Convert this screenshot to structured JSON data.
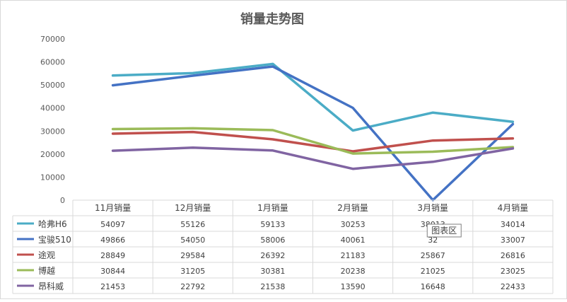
{
  "chart_data": {
    "type": "line",
    "title": "销量走势图",
    "categories": [
      "11月销量",
      "12月销量",
      "1月销量",
      "2月销量",
      "3月销量",
      "4月销量"
    ],
    "ylim": [
      0,
      70000
    ],
    "yticks": [
      "0",
      "10000",
      "20000",
      "30000",
      "40000",
      "50000",
      "60000",
      "70000"
    ],
    "grid": false,
    "legend": "data-table",
    "series": [
      {
        "name": "哈弗H6",
        "color": "#4bacc6",
        "values": [
          54097,
          55126,
          59133,
          30253,
          38013,
          34014
        ]
      },
      {
        "name": "宝骏510",
        "color": "#4472c4",
        "values": [
          49866,
          54050,
          58006,
          40061,
          32,
          33007
        ]
      },
      {
        "name": "途观",
        "color": "#c0504d",
        "values": [
          28849,
          29584,
          26392,
          21183,
          25867,
          26816
        ]
      },
      {
        "name": "博越",
        "color": "#9bbb59",
        "values": [
          30844,
          31205,
          30381,
          20238,
          21025,
          23025
        ]
      },
      {
        "name": "昂科威",
        "color": "#8064a2",
        "values": [
          21453,
          22792,
          21538,
          13590,
          16648,
          22433
        ]
      }
    ],
    "tooltip": "图表区"
  }
}
